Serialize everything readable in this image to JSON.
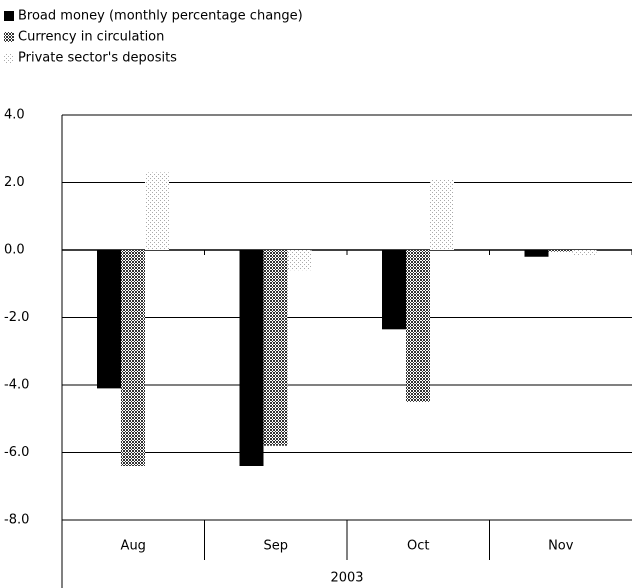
{
  "chart_data": {
    "type": "bar",
    "categories": [
      "Aug",
      "Sep",
      "Oct",
      "Nov"
    ],
    "group_label": "2003",
    "series": [
      {
        "name": "Broad money (monthly percentage change)",
        "color": "#000000",
        "values": [
          -4.1,
          -6.4,
          -2.35,
          -0.2
        ]
      },
      {
        "name": "Currency in circulation",
        "color": "#333333",
        "values": [
          -6.4,
          -5.8,
          -4.5,
          -0.05
        ]
      },
      {
        "name": "Private sector's deposits",
        "color": "#aaaaaa",
        "values": [
          2.3,
          -0.6,
          2.1,
          -0.15
        ]
      }
    ],
    "ylim": [
      -8,
      4
    ],
    "yticks": [
      {
        "value": -8,
        "label": "-8.0"
      },
      {
        "value": -6,
        "label": "-6.0"
      },
      {
        "value": -4,
        "label": "-4.0"
      },
      {
        "value": -2,
        "label": "-2.0"
      },
      {
        "value": 0,
        "label": "0.0"
      },
      {
        "value": 2,
        "label": "2.0"
      },
      {
        "value": 4,
        "label": "4.0"
      }
    ],
    "grid": true
  }
}
